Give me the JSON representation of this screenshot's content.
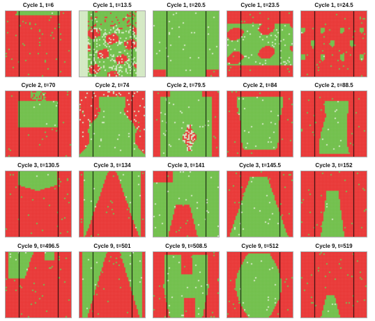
{
  "colors": {
    "red": "#e8302f",
    "green": "#6cbd45",
    "light": "#d2e9c2",
    "divider": "#111111"
  },
  "panels": [
    {
      "title": "Cycle 1, t=6",
      "pattern": "top-band"
    },
    {
      "title": "Cycle 1, t=13.5",
      "pattern": "side-light-mixed"
    },
    {
      "title": "Cycle 1, t=20.5",
      "pattern": "green-top-red"
    },
    {
      "title": "Cycle 1, t=23.5",
      "pattern": "mixed-top-green"
    },
    {
      "title": "Cycle 1, t=24.5",
      "pattern": "sparse-green"
    },
    {
      "title": "Cycle 2, t=70",
      "pattern": "red-top-pillar"
    },
    {
      "title": "Cycle 2, t=74",
      "pattern": "green-center-red-sides"
    },
    {
      "title": "Cycle 2, t=79.5",
      "pattern": "green-light-mid"
    },
    {
      "title": "Cycle 2, t=84",
      "pattern": "green-center-shape"
    },
    {
      "title": "Cycle 2, t=88.5",
      "pattern": "green-pillar"
    },
    {
      "title": "Cycle 3, t=130.5",
      "pattern": "green-top-bump"
    },
    {
      "title": "Cycle 3, t=134",
      "pattern": "red-cone-green-sides"
    },
    {
      "title": "Cycle 3, t=141",
      "pattern": "green-arch-red-core"
    },
    {
      "title": "Cycle 3, t=145.5",
      "pattern": "green-wedge"
    },
    {
      "title": "Cycle 3, t=152",
      "pattern": "narrow-green-pillar"
    },
    {
      "title": "Cycle 9, t=496.5",
      "pattern": "green-left-top"
    },
    {
      "title": "Cycle 9, t=501",
      "pattern": "green-frame-red-cone"
    },
    {
      "title": "Cycle 9, t=508.5",
      "pattern": "green-y-shape"
    },
    {
      "title": "Cycle 9, t=512",
      "pattern": "green-vase"
    },
    {
      "title": "Cycle 9, t=519",
      "pattern": "small-green-bottom"
    }
  ]
}
